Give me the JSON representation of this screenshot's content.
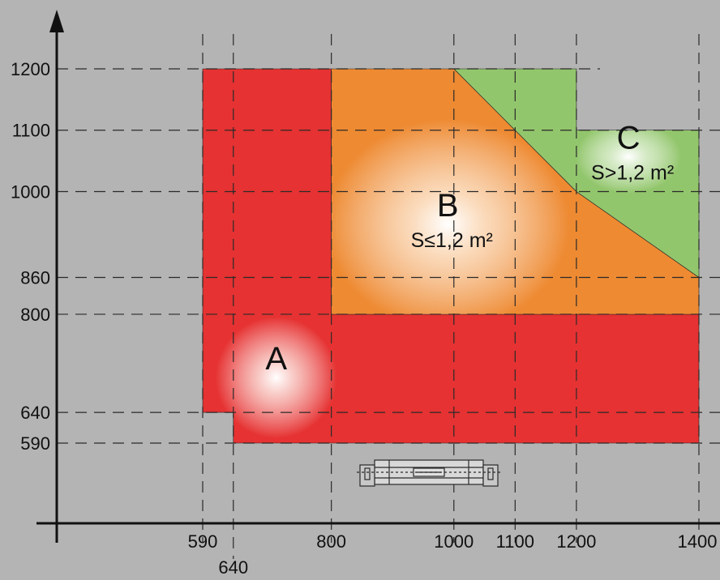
{
  "chart_data": {
    "type": "area",
    "x_ticks": [
      590,
      640,
      800,
      1000,
      1100,
      1200,
      1400
    ],
    "y_ticks": [
      590,
      640,
      800,
      860,
      1000,
      1100,
      1200
    ],
    "x_tick_labels": [
      "590",
      "640",
      "800",
      "1000",
      "1100",
      "1200",
      "1400"
    ],
    "y_tick_labels": [
      "590",
      "640",
      "800",
      "860",
      "1000",
      "1100",
      "1200"
    ],
    "xlim": [
      480,
      1410
    ],
    "ylim": [
      450,
      1300
    ],
    "grid": "dashed",
    "zones": [
      {
        "letter": "A",
        "area_label": "",
        "color": "#e63232",
        "polygon": [
          [
            590,
            1200
          ],
          [
            800,
            1200
          ],
          [
            800,
            800
          ],
          [
            1400,
            800
          ],
          [
            1400,
            590
          ],
          [
            640,
            590
          ],
          [
            640,
            640
          ],
          [
            590,
            640
          ]
        ],
        "label_at": [
          710,
          710
        ]
      },
      {
        "letter": "B",
        "area_label": "S≤1,2 m²",
        "color": "#ee8a32",
        "polygon": [
          [
            800,
            1200
          ],
          [
            1000,
            1200
          ],
          [
            1200,
            1000
          ],
          [
            1400,
            860
          ],
          [
            1400,
            800
          ],
          [
            800,
            800
          ]
        ],
        "label_at": [
          990,
          960
        ]
      },
      {
        "letter": "C",
        "area_label": "S>1,2 m²",
        "color": "#92c66c",
        "polygon": [
          [
            1000,
            1200
          ],
          [
            1200,
            1200
          ],
          [
            1200,
            1100
          ],
          [
            1400,
            1100
          ],
          [
            1400,
            860
          ],
          [
            1200,
            1000
          ]
        ],
        "label_at": [
          1285,
          1070
        ]
      }
    ]
  }
}
